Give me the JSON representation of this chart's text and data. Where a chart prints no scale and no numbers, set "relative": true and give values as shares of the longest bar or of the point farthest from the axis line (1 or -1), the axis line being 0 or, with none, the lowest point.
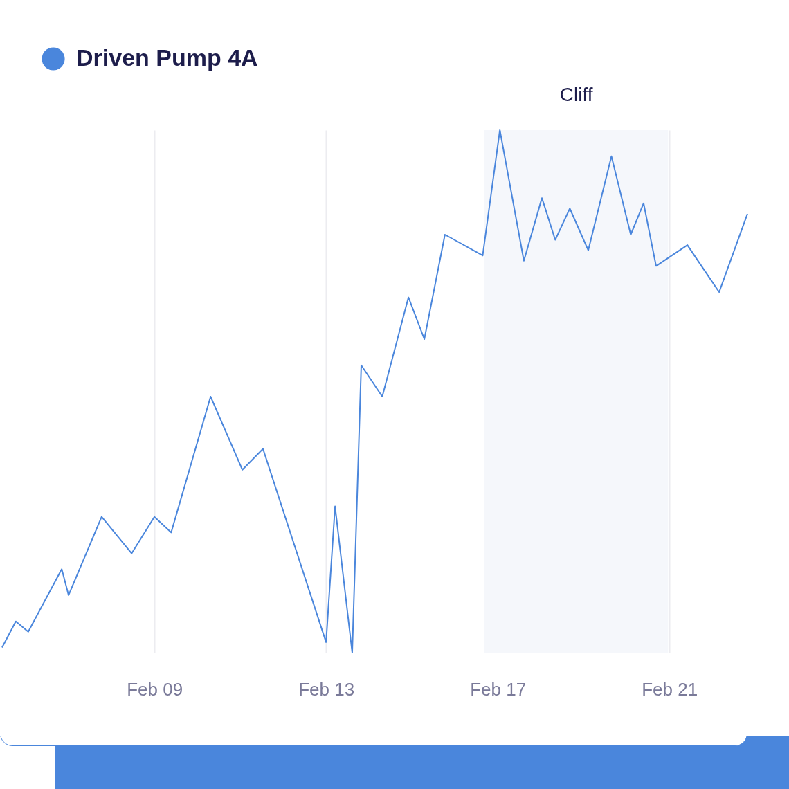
{
  "chart_data": {
    "type": "line",
    "relative": true,
    "x": [
      "--02-05T10:48",
      "--02-05T18:29",
      "--02-06T01:26",
      "--02-06T20:10",
      "--02-07T00:00",
      "--02-07T18:29",
      "--02-08T11:17",
      "--02-09T00:00",
      "--02-09T09:22",
      "--02-10T07:26",
      "--02-11T01:12",
      "--02-11T12:43",
      "--02-13T00:00",
      "--02-13T05:02",
      "--02-13T14:38",
      "--02-13T19:41",
      "--02-14T07:26",
      "--02-14T22:05",
      "--02-15T06:58",
      "--02-15T18:29",
      "--02-16T15:36",
      "--02-17T01:12",
      "--02-17T14:38",
      "--02-18T00:43",
      "--02-18T08:10",
      "--02-18T16:19",
      "--02-19T02:38",
      "--02-19T15:36",
      "--02-20T02:24",
      "--02-20T09:36",
      "--02-20T16:34",
      "--02-21T10:05",
      "--02-22T03:50",
      "--02-22T19:41"
    ],
    "series": [
      {
        "name": "Driven Pump 4A",
        "color": "#4a86dc",
        "values": [
          0.01,
          0.06,
          0.04,
          0.16,
          0.11,
          0.26,
          0.19,
          0.26,
          0.23,
          0.49,
          0.35,
          0.39,
          0.02,
          0.28,
          0,
          0.55,
          0.49,
          0.68,
          0.6,
          0.8,
          0.76,
          1,
          0.75,
          0.87,
          0.79,
          0.85,
          0.77,
          0.95,
          0.8,
          0.86,
          0.74,
          0.78,
          0.69,
          0.84
        ]
      }
    ],
    "xlim": [
      "--02-05T10:48",
      "--02-22T19:41"
    ],
    "xticks": [
      {
        "value": "--02-09",
        "label": "Feb 09"
      },
      {
        "value": "--02-13",
        "label": "Feb 13"
      },
      {
        "value": "--02-17",
        "label": "Feb 17"
      },
      {
        "value": "--02-21",
        "label": "Feb 21"
      }
    ],
    "bands": [
      {
        "axis": "x",
        "from": "--02-16T16:34",
        "to": "--02-20T23:17",
        "label": "Cliff",
        "color": "#f5f7fb"
      }
    ],
    "grid": "x",
    "legend": "top left",
    "line_style": "solid"
  }
}
